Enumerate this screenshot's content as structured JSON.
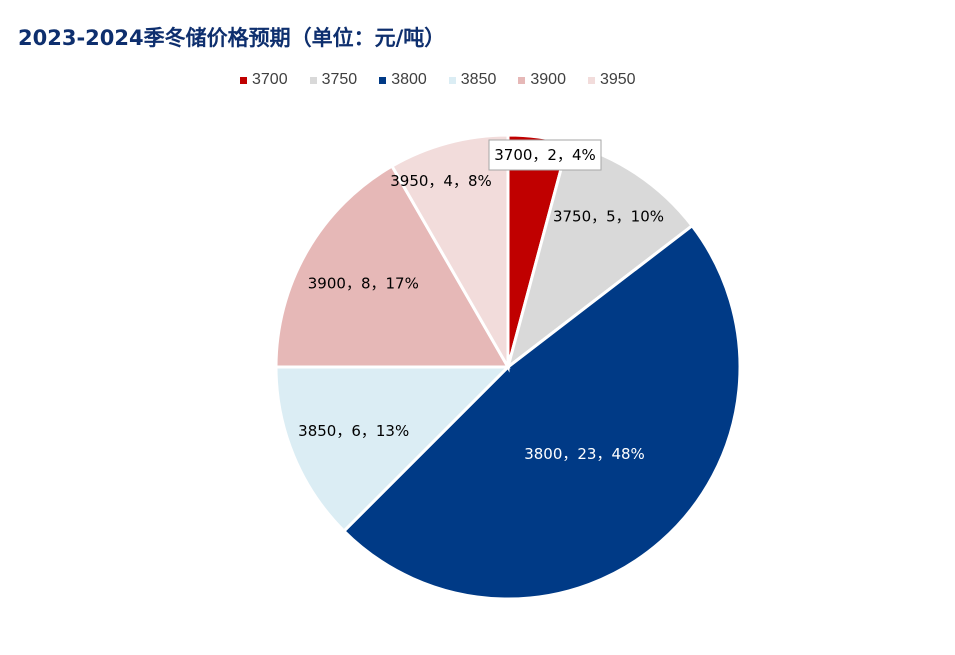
{
  "title": "2023-2024季冬储价格预期（单位：元/吨）",
  "chart_data": {
    "type": "pie",
    "title": "2023-2024季冬储价格预期（单位：元/吨）",
    "categories": [
      "3700",
      "3750",
      "3800",
      "3850",
      "3900",
      "3950"
    ],
    "values": [
      2,
      5,
      23,
      6,
      8,
      4
    ],
    "percent_labels": [
      "4%",
      "10%",
      "48%",
      "13%",
      "17%",
      "8%"
    ],
    "data_labels": [
      "3700，2，4%",
      "3750，5，10%",
      "3800，23，48%",
      "3850，6，13%",
      "3900，8，17%",
      "3950，4，8%"
    ],
    "colors": [
      "#c00000",
      "#d9d9d9",
      "#003a86",
      "#dbedf4",
      "#e6b8b7",
      "#f2dcdb"
    ],
    "label_colors": [
      "#000000",
      "#000000",
      "#ffffff",
      "#000000",
      "#000000",
      "#000000"
    ],
    "legend_position": "top",
    "start_angle": "12 o'clock, clockwise"
  }
}
